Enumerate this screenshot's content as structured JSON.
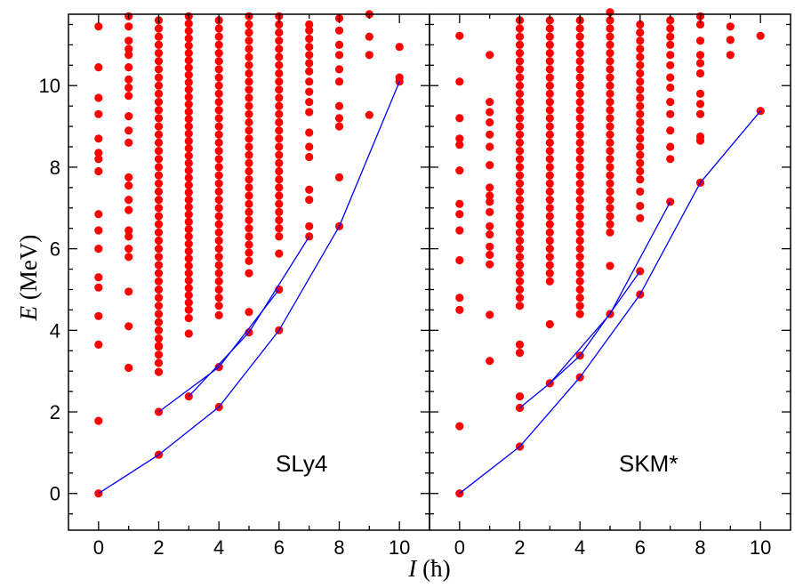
{
  "chart_data": {
    "type": "scatter",
    "xlabel_symbol": "I",
    "xlabel_unit": "(ħ)",
    "ylabel_symbol": "E",
    "ylabel_unit": "(MeV)",
    "ylim": [
      -0.9,
      11.75
    ],
    "y_ticks": [
      0,
      2,
      4,
      6,
      8,
      10
    ],
    "x_ticks": [
      0,
      2,
      4,
      6,
      8,
      10
    ],
    "colors": {
      "points": "#ff0000",
      "lines": "#0000ff",
      "axes": "#000000"
    },
    "panels": [
      {
        "label": "SLy4",
        "xlim": [
          -1,
          11
        ],
        "yrast_band_1": {
          "x": [
            0,
            2,
            4,
            6,
            8,
            10
          ],
          "y": [
            0.0,
            0.95,
            2.12,
            4.0,
            6.55,
            10.1
          ]
        },
        "yrast_band_2": {
          "x": [
            2,
            4,
            6
          ],
          "y": [
            2.0,
            3.1,
            5.0
          ]
        },
        "yrast_band_3": {
          "x": [
            3,
            5,
            7
          ],
          "y": [
            2.38,
            3.95,
            6.3
          ]
        },
        "levels": [
          {
            "spin": 0,
            "energies": [
              0.0,
              1.78,
              3.65,
              4.35,
              5.05,
              5.3,
              6.0,
              6.45,
              6.85,
              7.9,
              8.2,
              8.35,
              8.7,
              9.3,
              9.7,
              10.45,
              11.45
            ]
          },
          {
            "spin": 1,
            "energies": [
              3.08,
              4.1,
              4.95,
              5.8,
              6.0,
              6.3,
              6.45,
              6.95,
              7.2,
              7.55,
              7.75,
              8.6,
              8.9,
              9.25,
              9.75,
              9.95,
              10.15,
              10.45,
              10.75,
              10.9,
              11.1,
              11.45,
              11.7
            ]
          },
          {
            "spin": 2,
            "grid": [
              3.2,
              11.7,
              0.2
            ],
            "energies": [
              0.95,
              2.0,
              2.98,
              3.62
            ]
          },
          {
            "spin": 3,
            "grid": [
              4.5,
              11.8,
              0.18
            ],
            "energies": [
              2.38,
              3.92,
              4.3
            ]
          },
          {
            "spin": 4,
            "grid": [
              4.6,
              11.7,
              0.2
            ],
            "energies": [
              2.12,
              3.1,
              4.37
            ]
          },
          {
            "spin": 5,
            "grid": [
              5.9,
              11.7,
              0.2
            ],
            "energies": [
              3.95,
              4.45,
              5.4,
              5.7
            ]
          },
          {
            "spin": 6,
            "grid": [
              6.3,
              11.7,
              0.2
            ],
            "energies": [
              4.0,
              5.0,
              5.88
            ]
          },
          {
            "spin": 7,
            "energies": [
              6.3,
              6.55,
              7.2,
              7.45,
              8.25,
              8.5,
              8.85,
              9.35,
              9.6,
              9.85,
              10.1,
              10.35,
              10.55,
              10.75,
              10.95,
              11.15,
              11.35,
              11.5
            ]
          },
          {
            "spin": 8,
            "energies": [
              6.55,
              7.75,
              9.0,
              9.2,
              9.5,
              10.1,
              10.4,
              10.75,
              11.0,
              11.35,
              11.65
            ]
          },
          {
            "spin": 9,
            "energies": [
              9.28,
              10.75,
              11.2,
              11.75
            ]
          },
          {
            "spin": 10,
            "energies": [
              10.1,
              10.2,
              10.95
            ]
          }
        ]
      },
      {
        "label": "SKM*",
        "xlim": [
          -1,
          11
        ],
        "yrast_band_1": {
          "x": [
            0,
            2,
            4,
            6,
            8,
            10
          ],
          "y": [
            0.0,
            1.15,
            2.85,
            4.88,
            7.62,
            9.38
          ]
        },
        "yrast_band_2": {
          "x": [
            2,
            3,
            5,
            7
          ],
          "y": [
            2.1,
            2.7,
            4.4,
            7.15
          ]
        },
        "yrast_band_3": {
          "x": [
            3,
            4,
            6
          ],
          "y": [
            2.7,
            3.38,
            5.45
          ]
        },
        "levels": [
          {
            "spin": 0,
            "energies": [
              0.0,
              1.65,
              4.5,
              4.8,
              5.72,
              6.45,
              6.85,
              7.1,
              7.92,
              8.55,
              8.7,
              9.2,
              10.1,
              11.22
            ]
          },
          {
            "spin": 1,
            "energies": [
              3.25,
              4.38,
              5.62,
              5.85,
              6.05,
              6.35,
              6.55,
              6.9,
              7.15,
              7.3,
              7.5,
              8.05,
              8.5,
              8.8,
              9.1,
              9.35,
              9.6,
              10.75
            ]
          },
          {
            "spin": 2,
            "grid": [
              4.6,
              11.7,
              0.2
            ],
            "energies": [
              1.15,
              2.1,
              2.38,
              3.45,
              3.65
            ]
          },
          {
            "spin": 3,
            "grid": [
              5.2,
              11.7,
              0.2
            ],
            "energies": [
              2.7,
              4.15
            ]
          },
          {
            "spin": 4,
            "grid": [
              4.4,
              11.7,
              0.2
            ],
            "energies": [
              2.85,
              3.38
            ]
          },
          {
            "spin": 5,
            "grid": [
              6.4,
              11.8,
              0.2
            ],
            "energies": [
              4.4,
              5.58
            ]
          },
          {
            "spin": 6,
            "grid": [
              7.7,
              11.6,
              0.2
            ],
            "energies": [
              4.88,
              5.45,
              6.75,
              7.05,
              7.4
            ]
          },
          {
            "spin": 7,
            "energies": [
              7.15,
              8.2,
              8.5,
              8.9,
              9.3,
              9.6,
              9.95,
              10.2,
              10.5,
              10.75,
              11.0,
              11.2,
              11.4,
              11.6
            ]
          },
          {
            "spin": 8,
            "energies": [
              7.62,
              8.65,
              8.75,
              9.3,
              9.55,
              9.8,
              10.3,
              10.55,
              10.75,
              11.1,
              11.5,
              11.7
            ]
          },
          {
            "spin": 9,
            "energies": [
              10.75,
              11.12,
              11.45
            ]
          },
          {
            "spin": 10,
            "energies": [
              9.38,
              11.22
            ]
          }
        ]
      }
    ]
  }
}
